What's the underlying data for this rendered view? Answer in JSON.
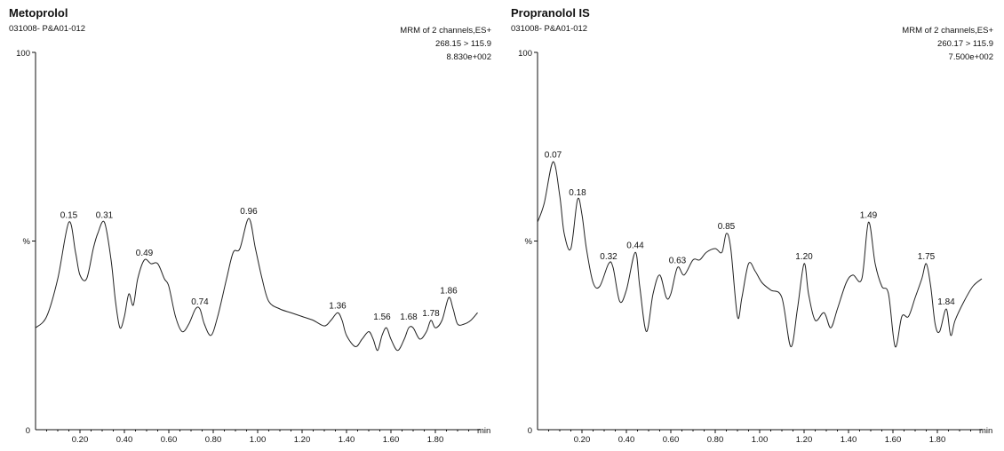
{
  "panels": [
    {
      "compound": "Metoprolol",
      "sample": "031008- P&A01-012",
      "mode": "MRM of 2 channels,ES+",
      "transition": "268.15 > 115.9",
      "intensity": "8.830e+002",
      "ytop_label": "100",
      "ymid_label": "%",
      "ybottom_label": "0",
      "x_unit": "min"
    },
    {
      "compound": "Propranolol IS",
      "sample": "031008- P&A01-012",
      "mode": "MRM of 2 channels,ES+",
      "transition": "260.17 > 115.9",
      "intensity": "7.500e+002",
      "ytop_label": "100",
      "ymid_label": "%",
      "ybottom_label": "0",
      "x_unit": "min"
    }
  ],
  "chart_data": [
    {
      "type": "line",
      "title": "Metoprolol",
      "xlabel": "min",
      "ylabel": "%",
      "xlim": [
        0,
        2.0
      ],
      "ylim": [
        0,
        100
      ],
      "x_ticks": [
        "0.20",
        "0.40",
        "0.60",
        "0.80",
        "1.00",
        "1.20",
        "1.40",
        "1.60",
        "1.80"
      ],
      "peak_labels": [
        {
          "x": 0.15,
          "y": 55,
          "label": "0.15"
        },
        {
          "x": 0.31,
          "y": 55,
          "label": "0.31"
        },
        {
          "x": 0.49,
          "y": 45,
          "label": "0.49"
        },
        {
          "x": 0.74,
          "y": 32,
          "label": "0.74"
        },
        {
          "x": 0.96,
          "y": 56,
          "label": "0.96"
        },
        {
          "x": 1.36,
          "y": 31,
          "label": "1.36"
        },
        {
          "x": 1.56,
          "y": 28,
          "label": "1.56"
        },
        {
          "x": 1.68,
          "y": 28,
          "label": "1.68"
        },
        {
          "x": 1.78,
          "y": 29,
          "label": "1.78"
        },
        {
          "x": 1.86,
          "y": 35,
          "label": "1.86"
        }
      ],
      "series": [
        {
          "x": [
            0.0,
            0.05,
            0.1,
            0.15,
            0.18,
            0.2,
            0.23,
            0.26,
            0.28,
            0.31,
            0.34,
            0.36,
            0.38,
            0.4,
            0.42,
            0.44,
            0.46,
            0.49,
            0.52,
            0.55,
            0.58,
            0.6,
            0.63,
            0.66,
            0.69,
            0.72,
            0.74,
            0.76,
            0.79,
            0.82,
            0.86,
            0.89,
            0.92,
            0.96,
            0.99,
            1.02,
            1.05,
            1.1,
            1.15,
            1.2,
            1.25,
            1.3,
            1.33,
            1.36,
            1.38,
            1.4,
            1.44,
            1.47,
            1.5,
            1.52,
            1.54,
            1.56,
            1.58,
            1.6,
            1.63,
            1.66,
            1.68,
            1.7,
            1.73,
            1.76,
            1.78,
            1.8,
            1.83,
            1.86,
            1.88,
            1.9,
            1.93,
            1.96,
            1.99
          ],
          "y": [
            27,
            30,
            40,
            55,
            47,
            41,
            40,
            48,
            52,
            55,
            45,
            34,
            27,
            30,
            36,
            33,
            40,
            45,
            44,
            44,
            40,
            38,
            30,
            26,
            28,
            32,
            32,
            28,
            25,
            30,
            40,
            47,
            48,
            56,
            48,
            40,
            34,
            32,
            31,
            30,
            29,
            27.5,
            29,
            31,
            29,
            25,
            22,
            24,
            26,
            24,
            21,
            25,
            27,
            24,
            21,
            24,
            27,
            27,
            24,
            26,
            29,
            27,
            29,
            35,
            32,
            28,
            28,
            29,
            31
          ]
        }
      ]
    },
    {
      "type": "line",
      "title": "Propranolol IS",
      "xlabel": "min",
      "ylabel": "%",
      "xlim": [
        0,
        2.0
      ],
      "ylim": [
        0,
        100
      ],
      "x_ticks": [
        "0.20",
        "0.40",
        "0.60",
        "0.80",
        "1.00",
        "1.20",
        "1.40",
        "1.60",
        "1.80"
      ],
      "peak_labels": [
        {
          "x": 0.07,
          "y": 71,
          "label": "0.07"
        },
        {
          "x": 0.18,
          "y": 61,
          "label": "0.18"
        },
        {
          "x": 0.32,
          "y": 44,
          "label": "0.32"
        },
        {
          "x": 0.44,
          "y": 47,
          "label": "0.44"
        },
        {
          "x": 0.63,
          "y": 43,
          "label": "0.63"
        },
        {
          "x": 0.85,
          "y": 52,
          "label": "0.85"
        },
        {
          "x": 1.2,
          "y": 44,
          "label": "1.20"
        },
        {
          "x": 1.49,
          "y": 55,
          "label": "1.49"
        },
        {
          "x": 1.75,
          "y": 44,
          "label": "1.75"
        },
        {
          "x": 1.84,
          "y": 32,
          "label": "1.84"
        }
      ],
      "series": [
        {
          "x": [
            0.0,
            0.03,
            0.07,
            0.1,
            0.12,
            0.15,
            0.18,
            0.2,
            0.22,
            0.25,
            0.28,
            0.32,
            0.34,
            0.37,
            0.4,
            0.44,
            0.46,
            0.49,
            0.52,
            0.55,
            0.58,
            0.6,
            0.63,
            0.66,
            0.7,
            0.73,
            0.76,
            0.8,
            0.83,
            0.85,
            0.87,
            0.9,
            0.92,
            0.95,
            0.98,
            1.01,
            1.05,
            1.1,
            1.14,
            1.17,
            1.2,
            1.22,
            1.25,
            1.29,
            1.32,
            1.35,
            1.39,
            1.42,
            1.46,
            1.49,
            1.52,
            1.55,
            1.58,
            1.61,
            1.64,
            1.67,
            1.7,
            1.73,
            1.75,
            1.77,
            1.79,
            1.81,
            1.84,
            1.86,
            1.88,
            1.92,
            1.96,
            2.0
          ],
          "y": [
            55,
            60,
            71,
            62,
            52,
            48,
            61,
            57,
            48,
            39,
            38,
            44,
            43,
            34,
            37,
            47,
            38,
            26,
            36,
            41,
            35,
            36,
            43,
            41,
            45,
            45,
            47,
            48,
            47,
            52,
            48,
            30,
            35,
            44,
            42,
            39,
            37,
            35,
            22,
            32,
            44,
            36,
            29,
            31,
            27,
            32,
            39,
            41,
            40,
            55,
            44,
            38,
            36,
            22,
            30,
            30,
            35,
            40,
            44,
            38,
            28,
            26,
            32,
            25,
            29,
            34,
            38,
            40
          ]
        }
      ]
    }
  ]
}
